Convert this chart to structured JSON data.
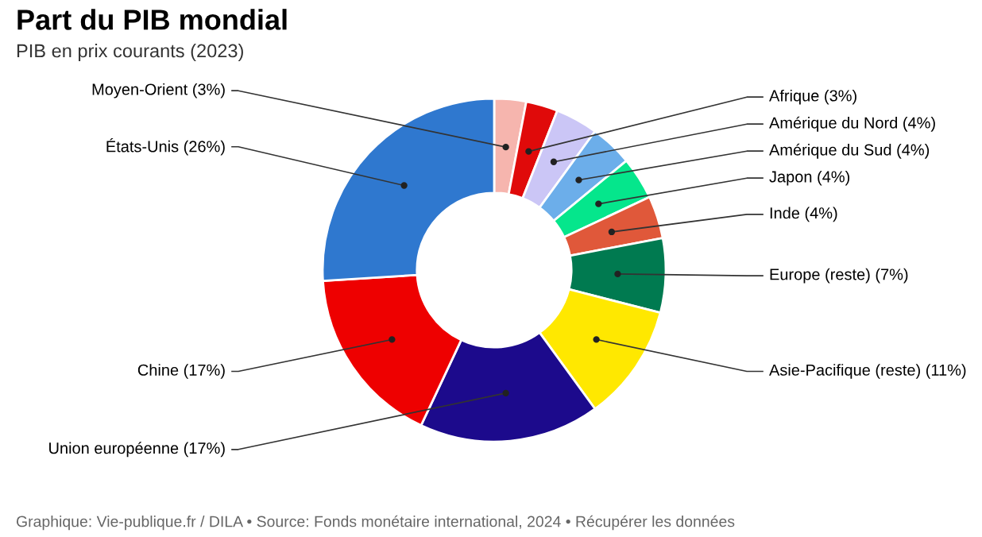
{
  "chart_data": {
    "type": "donut",
    "title": "Part du PIB mondial",
    "subtitle": "PIB en prix courants (2023)",
    "categories": [
      "Moyen-Orient",
      "Afrique",
      "Amérique du Nord",
      "Amérique du Sud",
      "Japon",
      "Inde",
      "Europe (reste)",
      "Asie-Pacifique (reste)",
      "Union européenne",
      "Chine",
      "États-Unis"
    ],
    "values": [
      3,
      3,
      4,
      4,
      4,
      4,
      7,
      11,
      17,
      17,
      26
    ],
    "value_labels": [
      "(3%)",
      "(3%)",
      "(4%)",
      "(4%)",
      "(4%)",
      "(4%)",
      "(7%)",
      "(11%)",
      "(17%)",
      "(17%)",
      "(26%)"
    ],
    "colors": [
      "#f6b5ae",
      "#e00a0a",
      "#cbc6f6",
      "#6caeea",
      "#05e68c",
      "#e0583a",
      "#007a50",
      "#ffe800",
      "#1c0a8c",
      "#ee0000",
      "#2f78cf"
    ],
    "legend": false,
    "annotations": [
      "Graphique: Vie-publique.fr / DILA • Source: Fonds monétaire international, 2024 • Récupérer les données"
    ]
  }
}
